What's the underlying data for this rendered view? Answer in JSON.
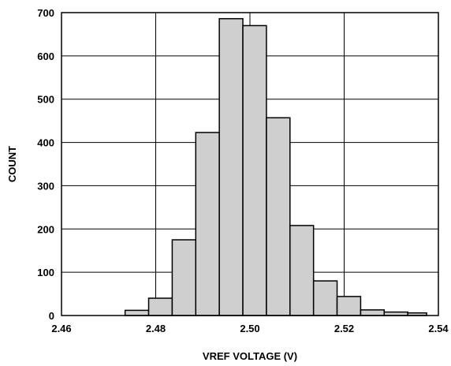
{
  "chart_data": {
    "type": "bar",
    "title": "",
    "xlabel": "VREF VOLTAGE (V)",
    "ylabel": "COUNT",
    "xlim": [
      2.46,
      2.54
    ],
    "ylim": [
      0,
      700
    ],
    "x_ticks": [
      "2.46",
      "2.48",
      "2.50",
      "2.52",
      "2.54"
    ],
    "y_ticks": [
      "0",
      "100",
      "200",
      "300",
      "400",
      "500",
      "600",
      "700"
    ],
    "grid": true,
    "bin_width": 0.005,
    "bins": [
      {
        "x_start": 2.4735,
        "x_end": 2.4785,
        "count": 12
      },
      {
        "x_start": 2.4785,
        "x_end": 2.4835,
        "count": 40
      },
      {
        "x_start": 2.4835,
        "x_end": 2.4885,
        "count": 175
      },
      {
        "x_start": 2.4885,
        "x_end": 2.4935,
        "count": 423
      },
      {
        "x_start": 2.4935,
        "x_end": 2.4985,
        "count": 686
      },
      {
        "x_start": 2.4985,
        "x_end": 2.5035,
        "count": 670
      },
      {
        "x_start": 2.5035,
        "x_end": 2.5085,
        "count": 457
      },
      {
        "x_start": 2.5085,
        "x_end": 2.5135,
        "count": 208
      },
      {
        "x_start": 2.5135,
        "x_end": 2.5185,
        "count": 80
      },
      {
        "x_start": 2.5185,
        "x_end": 2.5235,
        "count": 44
      },
      {
        "x_start": 2.5235,
        "x_end": 2.5285,
        "count": 13
      },
      {
        "x_start": 2.5285,
        "x_end": 2.5335,
        "count": 8
      },
      {
        "x_start": 2.5335,
        "x_end": 2.5375,
        "count": 6
      }
    ]
  }
}
